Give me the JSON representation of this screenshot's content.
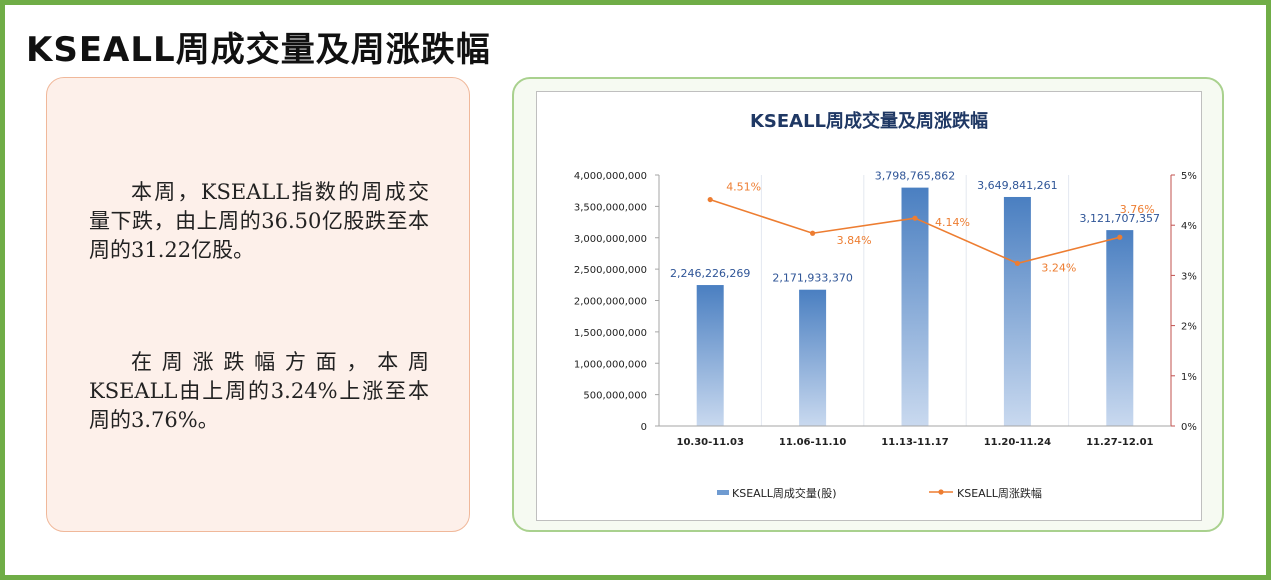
{
  "page": {
    "title": "KSEALL周成交量及周涨跌幅"
  },
  "summary": {
    "paragraph1": "本周，KSEALL指数的周成交量下跌，由上周的36.50亿股跌至本周的31.22亿股。",
    "paragraph2": "在周涨跌幅方面，本周KSEALL由上周的3.24%上涨至本周的3.76%。"
  },
  "colors": {
    "frame": "#70ad47",
    "bar_top": "#4a7fc1",
    "bar_bottom": "#c9d9ef",
    "line": "#ed7d31",
    "title": "#1f3864"
  },
  "chart_data": {
    "type": "bar",
    "title": "KSEALL周成交量及周涨跌幅",
    "categories": [
      "10.30-11.03",
      "11.06-11.10",
      "11.13-11.17",
      "11.20-11.24",
      "11.27-12.01"
    ],
    "series": [
      {
        "name": "KSEALL周成交量(股)",
        "type": "bar",
        "axis": "left",
        "values": [
          2246226269,
          2171933370,
          3798765862,
          3649841261,
          3121707357
        ],
        "labels": [
          "2,246,226,269",
          "2,171,933,370",
          "3,798,765,862",
          "3,649,841,261",
          "3,121,707,357"
        ]
      },
      {
        "name": "KSEALL周涨跌幅",
        "type": "line",
        "axis": "right",
        "values": [
          4.51,
          3.84,
          4.14,
          3.24,
          3.76
        ],
        "labels": [
          "4.51%",
          "3.84%",
          "4.14%",
          "3.24%",
          "3.76%"
        ]
      }
    ],
    "y_left": {
      "min": 0,
      "max": 4000000000,
      "ticks": [
        "0",
        "500,000,000",
        "1,000,000,000",
        "1,500,000,000",
        "2,000,000,000",
        "2,500,000,000",
        "3,000,000,000",
        "3,500,000,000",
        "4,000,000,000"
      ]
    },
    "y_right": {
      "min": 0,
      "max": 5,
      "ticks": [
        "0%",
        "1%",
        "2%",
        "3%",
        "4%",
        "5%"
      ]
    },
    "legend_position": "bottom",
    "grid": "vertical"
  }
}
